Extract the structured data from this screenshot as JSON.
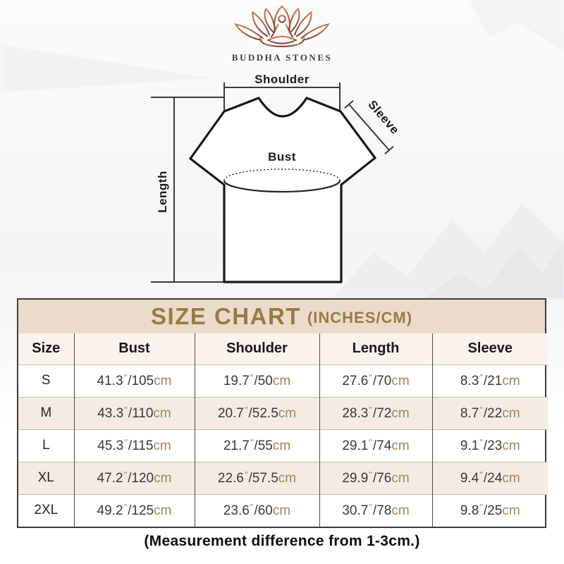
{
  "brand": {
    "name": "BUDDHA STONES",
    "logo_icon": "lotus-meditation-icon",
    "logo_colors": {
      "top": "#c97b44",
      "mid": "#a85a3e",
      "bottom": "#7d3a36",
      "text": "#443c36"
    }
  },
  "diagram": {
    "shoulder_label": "Shoulder",
    "sleeve_label": "Sleeve",
    "bust_label": "Bust",
    "length_label": "Length"
  },
  "size_chart": {
    "title": "SIZE CHART",
    "subtitle": "(INCHES/CM)",
    "columns": [
      "Size",
      "Bust",
      "Shoulder",
      "Length",
      "Sleeve"
    ],
    "units": {
      "inch_mark": "\"",
      "separator": "/",
      "cm_suffix": "cm"
    },
    "rows": [
      {
        "size": "S",
        "bust": {
          "in": "41.3",
          "cm": "105"
        },
        "shoulder": {
          "in": "19.7",
          "cm": "50"
        },
        "length": {
          "in": "27.6",
          "cm": "70"
        },
        "sleeve": {
          "in": "8.3",
          "cm": "21"
        }
      },
      {
        "size": "M",
        "bust": {
          "in": "43.3",
          "cm": "110"
        },
        "shoulder": {
          "in": "20.7",
          "cm": "52.5"
        },
        "length": {
          "in": "28.3",
          "cm": "72"
        },
        "sleeve": {
          "in": "8.7",
          "cm": "22"
        }
      },
      {
        "size": "L",
        "bust": {
          "in": "45.3",
          "cm": "115"
        },
        "shoulder": {
          "in": "21.7",
          "cm": "55"
        },
        "length": {
          "in": "29.1",
          "cm": "74"
        },
        "sleeve": {
          "in": "9.1",
          "cm": "23"
        }
      },
      {
        "size": "XL",
        "bust": {
          "in": "47.2",
          "cm": "120"
        },
        "shoulder": {
          "in": "22.6",
          "cm": "57.5"
        },
        "length": {
          "in": "29.9",
          "cm": "76"
        },
        "sleeve": {
          "in": "9.4",
          "cm": "24"
        }
      },
      {
        "size": "2XL",
        "bust": {
          "in": "49.2",
          "cm": "125"
        },
        "shoulder": {
          "in": "23.6",
          "cm": "60"
        },
        "length": {
          "in": "30.7",
          "cm": "78"
        },
        "sleeve": {
          "in": "9.8",
          "cm": "25"
        }
      }
    ],
    "colors": {
      "title_text": "#9a7a45",
      "band_bg": "#ebdbca",
      "header_row_bg": "#faf3ed",
      "alt_row_bg": "#f4ebe2",
      "accent_text": "#a8835a",
      "body_text": "#3a3a3a",
      "border": "#3f3b38"
    }
  },
  "footer": {
    "note": "(Measurement difference from 1-3cm.)"
  }
}
